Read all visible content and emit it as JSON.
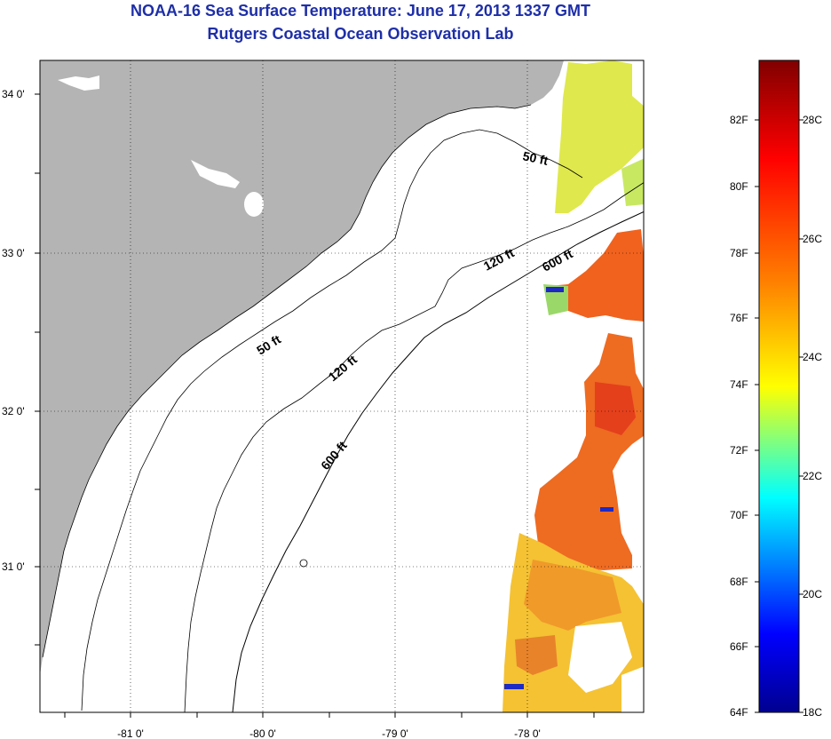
{
  "header": {
    "title": "NOAA-16 Sea Surface Temperature:  June 17, 2013 1337 GMT",
    "subtitle": "Rutgers Coastal Ocean Observation Lab"
  },
  "map": {
    "lat_labels": [
      "34 0'",
      "33 0'",
      "32 0'",
      "31 0'"
    ],
    "lon_labels": [
      "-81 0'",
      "-80 0'",
      "-79 0'",
      "-78 0'"
    ],
    "contour_labels": [
      "50 ft",
      "50 ft",
      "120 ft",
      "120 ft",
      "600 ft",
      "600 ft"
    ]
  },
  "colorbar": {
    "fahrenheit_labels": [
      "82F",
      "80F",
      "78F",
      "76F",
      "74F",
      "72F",
      "70F",
      "68F",
      "66F",
      "64F"
    ],
    "celsius_labels": [
      "28C",
      "26C",
      "24C",
      "22C",
      "20C",
      "18C"
    ],
    "range_f": [
      64,
      84
    ],
    "colors": [
      "#00008f",
      "#0000ff",
      "#00ffff",
      "#ffff00",
      "#ff8000",
      "#ff0000",
      "#800000"
    ]
  },
  "colors": {
    "land": "#b4b4b4",
    "water": "#ffffff",
    "title": "#1e2fa8"
  }
}
